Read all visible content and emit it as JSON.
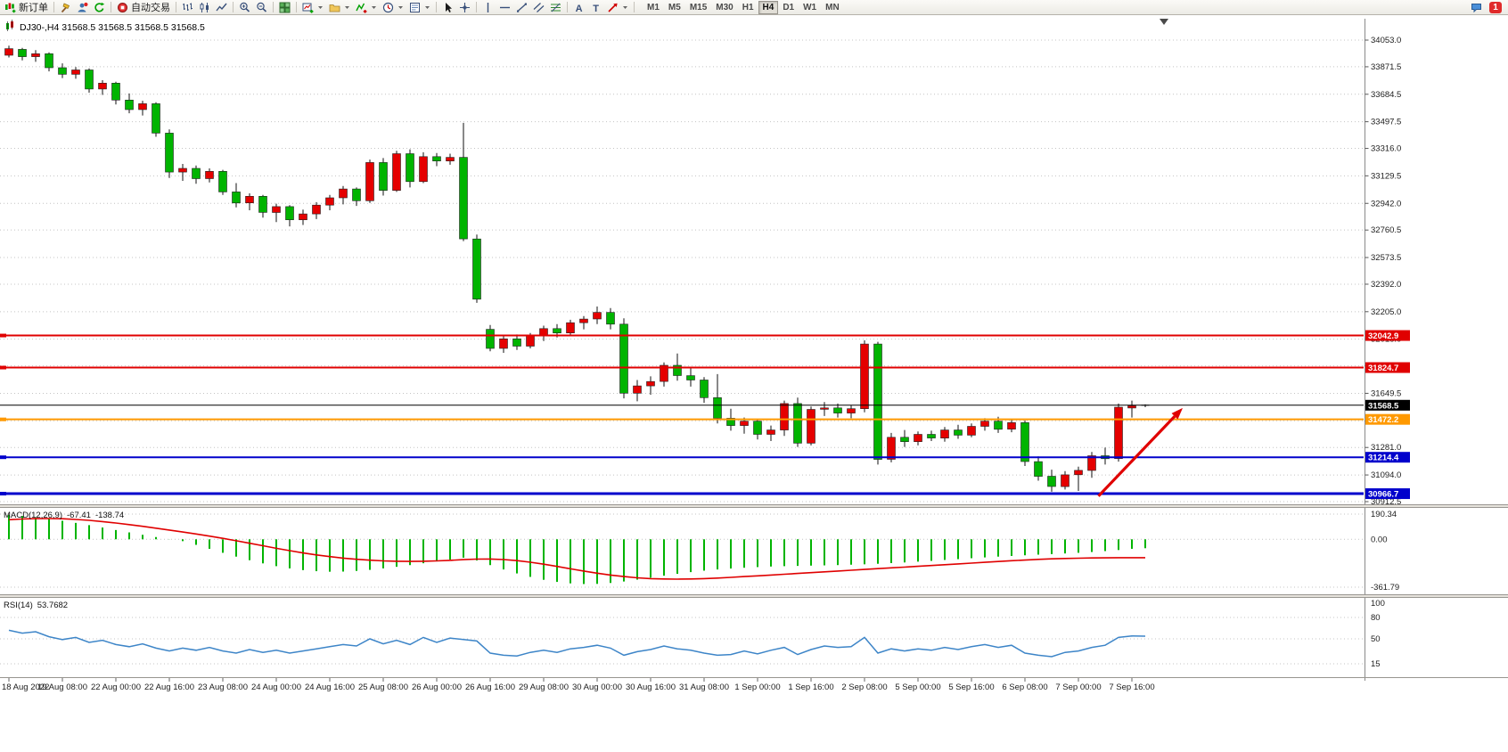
{
  "toolbar": {
    "new_order_label": "新订单",
    "auto_trading_label": "自动交易",
    "icon_buttons": [
      "new-order-icon",
      "hammer-icon",
      "user-accounts-icon",
      "refresh-icon",
      "auto-trading-icon",
      "bar-chart-icon",
      "candlestick-chart-icon",
      "line-chart-icon",
      "zoom-in-icon",
      "zoom-out-icon",
      "tile-windows-icon",
      "new-chart-icon",
      "profiles-icon",
      "indicators-icon",
      "period-clock-icon",
      "template-icon",
      "cursor-icon",
      "crosshair-icon",
      "vertical-line-icon",
      "horizontal-line-icon",
      "trendline-icon",
      "channel-icon",
      "fibonacci-icon",
      "text-icon",
      "label-icon",
      "arrows-icon",
      "message-icon"
    ],
    "timeframes": [
      "M1",
      "M5",
      "M15",
      "M30",
      "H1",
      "H4",
      "D1",
      "W1",
      "MN"
    ],
    "active_timeframe": "H4",
    "notification_count": "1"
  },
  "chart": {
    "symbol": "DJ30-",
    "period": "H4",
    "title": "DJ30-,H4 31568.5 31568.5 31568.5 31568.5"
  },
  "indicators": {
    "macd": {
      "label": "MACD(12,26,9)",
      "value_main": "-67.41",
      "value_signal": "-138.74",
      "axis_labels": [
        "190.34",
        "0.00",
        "-361.79"
      ]
    },
    "rsi": {
      "label": "RSI(14)",
      "value": "53.7682",
      "axis_labels": [
        "100",
        "80",
        "50",
        "15"
      ]
    }
  },
  "chart_data": {
    "type": "candlestick",
    "symbol": "DJ30-",
    "timeframe": "H4",
    "price_axis_range": [
      30912.5,
      34053.0
    ],
    "price_axis_ticks": [
      34053.0,
      33871.5,
      33684.5,
      33497.5,
      33316.0,
      33129.5,
      32942.0,
      32760.5,
      32573.5,
      32392.0,
      32205.0,
      32018.0,
      31836.5,
      31649.5,
      31462.5,
      31281.0,
      31094.0,
      30912.5
    ],
    "time_labels": [
      "18 Aug 2022",
      "19 Aug 08:00",
      "22 Aug 00:00",
      "22 Aug 16:00",
      "23 Aug 08:00",
      "24 Aug 00:00",
      "24 Aug 16:00",
      "25 Aug 08:00",
      "26 Aug 00:00",
      "26 Aug 16:00",
      "29 Aug 08:00",
      "30 Aug 00:00",
      "30 Aug 16:00",
      "31 Aug 08:00",
      "1 Sep 00:00",
      "1 Sep 16:00",
      "2 Sep 08:00",
      "5 Sep 00:00",
      "5 Sep 16:00",
      "6 Sep 08:00",
      "7 Sep 00:00",
      "7 Sep 16:00"
    ],
    "bars_per_time_label": 4,
    "current_price": 31568.5,
    "levels": [
      {
        "price": 32042.9,
        "color": "#e00000",
        "width": 2
      },
      {
        "price": 31824.7,
        "color": "#e00000",
        "width": 2
      },
      {
        "price": 31472.2,
        "color": "#ff9900",
        "width": 2
      },
      {
        "price": 31214.4,
        "color": "#0000cc",
        "width": 2
      },
      {
        "price": 30966.7,
        "color": "#0000cc",
        "width": 3
      }
    ],
    "candles_ohlc": [
      [
        33950,
        34015,
        33935,
        33995
      ],
      [
        33990,
        34000,
        33915,
        33940
      ],
      [
        33940,
        33985,
        33905,
        33960
      ],
      [
        33960,
        33970,
        33840,
        33865
      ],
      [
        33865,
        33895,
        33795,
        33820
      ],
      [
        33820,
        33870,
        33790,
        33850
      ],
      [
        33850,
        33860,
        33695,
        33720
      ],
      [
        33720,
        33780,
        33680,
        33760
      ],
      [
        33760,
        33770,
        33615,
        33645
      ],
      [
        33645,
        33690,
        33555,
        33580
      ],
      [
        33580,
        33640,
        33540,
        33620
      ],
      [
        33620,
        33630,
        33395,
        33420
      ],
      [
        33420,
        33445,
        33115,
        33155
      ],
      [
        33155,
        33210,
        33095,
        33180
      ],
      [
        33180,
        33200,
        33075,
        33110
      ],
      [
        33110,
        33180,
        33085,
        33160
      ],
      [
        33160,
        33170,
        33000,
        33020
      ],
      [
        33020,
        33080,
        32915,
        32945
      ],
      [
        32945,
        33010,
        32895,
        32990
      ],
      [
        32990,
        33000,
        32845,
        32880
      ],
      [
        32880,
        32940,
        32815,
        32920
      ],
      [
        32920,
        32930,
        32785,
        32830
      ],
      [
        32830,
        32900,
        32795,
        32870
      ],
      [
        32870,
        32950,
        32835,
        32930
      ],
      [
        32930,
        33000,
        32895,
        32980
      ],
      [
        32980,
        33060,
        32935,
        33040
      ],
      [
        33040,
        33050,
        32925,
        32960
      ],
      [
        32960,
        33240,
        32945,
        33220
      ],
      [
        33220,
        33250,
        32995,
        33030
      ],
      [
        33030,
        33300,
        33020,
        33280
      ],
      [
        33280,
        33310,
        33050,
        33090
      ],
      [
        33090,
        33290,
        33080,
        33260
      ],
      [
        33260,
        33285,
        33195,
        33230
      ],
      [
        33230,
        33280,
        33205,
        33255
      ],
      [
        33255,
        33490,
        32685,
        32700
      ],
      [
        32700,
        32730,
        32265,
        32290
      ],
      [
        32085,
        32115,
        31935,
        31955
      ],
      [
        31955,
        32040,
        31925,
        32020
      ],
      [
        32020,
        32050,
        31945,
        31970
      ],
      [
        31970,
        32060,
        31955,
        32040
      ],
      [
        32040,
        32110,
        32005,
        32090
      ],
      [
        32090,
        32120,
        32030,
        32060
      ],
      [
        32060,
        32150,
        32045,
        32130
      ],
      [
        32130,
        32175,
        32085,
        32155
      ],
      [
        32155,
        32240,
        32120,
        32200
      ],
      [
        32200,
        32230,
        32085,
        32120
      ],
      [
        32120,
        32160,
        31615,
        31650
      ],
      [
        31650,
        31740,
        31595,
        31700
      ],
      [
        31700,
        31765,
        31640,
        31730
      ],
      [
        31730,
        31860,
        31695,
        31840
      ],
      [
        31840,
        31920,
        31735,
        31770
      ],
      [
        31770,
        31825,
        31695,
        31740
      ],
      [
        31740,
        31760,
        31585,
        31620
      ],
      [
        31620,
        31780,
        31445,
        31480
      ],
      [
        31480,
        31545,
        31395,
        31430
      ],
      [
        31430,
        31485,
        31375,
        31460
      ],
      [
        31460,
        31470,
        31335,
        31370
      ],
      [
        31370,
        31430,
        31325,
        31400
      ],
      [
        31400,
        31600,
        31360,
        31580
      ],
      [
        31580,
        31620,
        31285,
        31310
      ],
      [
        31310,
        31560,
        31295,
        31540
      ],
      [
        31540,
        31590,
        31495,
        31550
      ],
      [
        31550,
        31580,
        31485,
        31515
      ],
      [
        31515,
        31570,
        31480,
        31545
      ],
      [
        31545,
        32010,
        31520,
        31985
      ],
      [
        31985,
        32000,
        31165,
        31200
      ],
      [
        31200,
        31380,
        31180,
        31350
      ],
      [
        31350,
        31400,
        31285,
        31320
      ],
      [
        31320,
        31390,
        31295,
        31370
      ],
      [
        31370,
        31395,
        31325,
        31345
      ],
      [
        31345,
        31420,
        31320,
        31400
      ],
      [
        31400,
        31435,
        31340,
        31365
      ],
      [
        31365,
        31445,
        31350,
        31425
      ],
      [
        31425,
        31480,
        31395,
        31460
      ],
      [
        31460,
        31490,
        31380,
        31405
      ],
      [
        31405,
        31470,
        31385,
        31450
      ],
      [
        31450,
        31465,
        31155,
        31185
      ],
      [
        31185,
        31220,
        31055,
        31085
      ],
      [
        31085,
        31130,
        30980,
        31015
      ],
      [
        31015,
        31120,
        30995,
        31095
      ],
      [
        31095,
        31150,
        30985,
        31125
      ],
      [
        31125,
        31250,
        31075,
        31225
      ],
      [
        31225,
        31280,
        31165,
        31205
      ],
      [
        31205,
        31580,
        31185,
        31555
      ],
      [
        31550,
        31600,
        31485,
        31565
      ],
      [
        31568.5,
        31575,
        31555,
        31568.5
      ]
    ],
    "macd": {
      "params": "12,26,9",
      "last_main": -67.41,
      "last_signal": -138.74,
      "axis_values": [
        190.34,
        0.0,
        -361.79
      ],
      "histogram": [
        185,
        176,
        166,
        154,
        140,
        124,
        107,
        89,
        70,
        52,
        34,
        17,
        1,
        -14,
        -42,
        -72,
        -102,
        -131,
        -158,
        -182,
        -203,
        -220,
        -233,
        -241,
        -245,
        -244,
        -239,
        -231,
        -220,
        -208,
        -195,
        -181,
        -167,
        -153,
        -139,
        -160,
        -195,
        -228,
        -258,
        -284,
        -306,
        -322,
        -333,
        -338,
        -337,
        -330,
        -319,
        -305,
        -290,
        -275,
        -261,
        -248,
        -237,
        -228,
        -221,
        -215,
        -210,
        -206,
        -203,
        -201,
        -199,
        -197,
        -195,
        -192,
        -189,
        -185,
        -180,
        -175,
        -169,
        -163,
        -156,
        -150,
        -143,
        -137,
        -131,
        -126,
        -121,
        -116,
        -112,
        -107,
        -102,
        -96,
        -89,
        -81,
        -72,
        -67.41
      ],
      "signal": [
        148,
        153,
        156,
        157,
        155,
        150,
        143,
        134,
        123,
        111,
        98,
        84,
        70,
        55,
        40,
        24,
        7,
        -11,
        -30,
        -49,
        -68,
        -86,
        -103,
        -118,
        -131,
        -142,
        -151,
        -158,
        -163,
        -166,
        -167,
        -166,
        -163,
        -159,
        -154,
        -150,
        -149,
        -153,
        -161,
        -173,
        -188,
        -205,
        -223,
        -240,
        -256,
        -270,
        -282,
        -291,
        -297,
        -300,
        -301,
        -300,
        -297,
        -293,
        -288,
        -282,
        -276,
        -270,
        -264,
        -258,
        -252,
        -246,
        -240,
        -234,
        -228,
        -222,
        -216,
        -210,
        -204,
        -198,
        -192,
        -186,
        -180,
        -174,
        -168,
        -162,
        -157,
        -152,
        -148,
        -145,
        -143,
        -141,
        -140,
        -139,
        -139,
        -138.74
      ]
    },
    "rsi": {
      "period": 14,
      "last_value": 53.7682,
      "levels": [
        80,
        50,
        15
      ],
      "values": [
        62,
        58,
        60,
        53,
        49,
        52,
        45,
        48,
        42,
        39,
        43,
        37,
        33,
        37,
        34,
        38,
        33,
        30,
        35,
        31,
        34,
        30,
        33,
        36,
        39,
        42,
        40,
        50,
        43,
        48,
        42,
        52,
        45,
        51,
        49,
        47,
        30,
        27,
        26,
        31,
        34,
        31,
        36,
        38,
        41,
        37,
        27,
        32,
        35,
        40,
        36,
        34,
        30,
        27,
        28,
        33,
        29,
        34,
        38,
        28,
        35,
        40,
        38,
        39,
        52,
        30,
        36,
        33,
        36,
        34,
        38,
        35,
        39,
        42,
        38,
        41,
        30,
        27,
        25,
        31,
        33,
        38,
        41,
        52,
        54,
        53.7682
      ]
    },
    "trend_arrow": {
      "from_bar": 81.5,
      "from_price": 30950,
      "to_bar": 87.8,
      "to_price": 31550,
      "color": "#e00000"
    },
    "colors": {
      "bull": "#e50000",
      "bear": "#00b400",
      "macd_hist": "#00b400",
      "macd_signal": "#e00000",
      "rsi_line": "#3d85c8",
      "level_red": "#e00000",
      "level_orange": "#ff9900",
      "level_blue": "#0000cc",
      "current": "#000000"
    }
  }
}
